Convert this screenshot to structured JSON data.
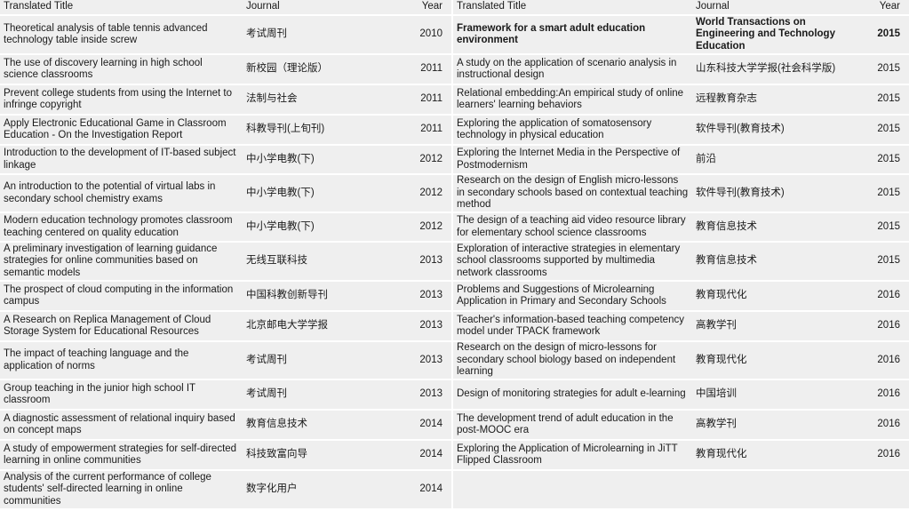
{
  "headers": {
    "title": "Translated Title",
    "journal": "Journal",
    "year": "Year"
  },
  "rows": [
    {
      "l": {
        "title": "Theoretical analysis of table tennis advanced technology table inside screw",
        "journal": "考试周刊",
        "year": "2010"
      },
      "r": {
        "title": "Framework for a smart adult education environment",
        "journal": "World Transactions on Engineering and Technology Education",
        "year": "2015",
        "bold": true
      }
    },
    {
      "l": {
        "title": "The use of discovery learning in high school science classrooms",
        "journal": "新校园（理论版）",
        "year": "2011"
      },
      "r": {
        "title": "A study on the application of scenario analysis in instructional design",
        "journal": "山东科技大学学报(社会科学版)",
        "year": "2015"
      }
    },
    {
      "l": {
        "title": "Prevent college students from using the Internet to infringe copyright",
        "journal": "法制与社会",
        "year": "2011"
      },
      "r": {
        "title": "Relational embedding:An empirical study of online learners' learning behaviors",
        "journal": "远程教育杂志",
        "year": "2015"
      }
    },
    {
      "l": {
        "title": "Apply Electronic Educational Game in Classroom Education - On the Investigation Report",
        "journal": "科教导刊(上旬刊)",
        "year": "2011"
      },
      "r": {
        "title": "Exploring the application of somatosensory technology in physical education",
        "journal": "软件导刊(教育技术)",
        "year": "2015"
      }
    },
    {
      "l": {
        "title": "Introduction to the development of IT-based subject linkage",
        "journal": "中小学电教(下)",
        "year": "2012"
      },
      "r": {
        "title": "Exploring the Internet Media in the Perspective of Postmodernism",
        "journal": "前沿",
        "year": "2015"
      }
    },
    {
      "l": {
        "title": "An introduction to the potential of virtual labs in secondary school chemistry exams",
        "journal": "中小学电教(下)",
        "year": "2012"
      },
      "r": {
        "title": "Research on the design of English micro-lessons in secondary schools based on contextual teaching method",
        "journal": "软件导刊(教育技术)",
        "year": "2015"
      }
    },
    {
      "l": {
        "title": "Modern education technology promotes classroom teaching centered on quality education",
        "journal": "中小学电教(下)",
        "year": "2012"
      },
      "r": {
        "title": "The design of a teaching aid video resource library for elementary school science classrooms",
        "journal": "教育信息技术",
        "year": "2015"
      }
    },
    {
      "l": {
        "title": "A preliminary investigation of learning guidance strategies for online communities based on semantic models",
        "journal": "无线互联科技",
        "year": "2013"
      },
      "r": {
        "title": "Exploration of interactive strategies in elementary school classrooms supported by multimedia network classrooms",
        "journal": "教育信息技术",
        "year": "2015"
      }
    },
    {
      "l": {
        "title": "The prospect of cloud computing in the information campus",
        "journal": "中国科教创新导刊",
        "year": "2013"
      },
      "r": {
        "title": "Problems and Suggestions of Microlearning Application in Primary and Secondary Schools",
        "journal": "教育现代化",
        "year": "2016"
      }
    },
    {
      "l": {
        "title": "A Research on Replica Management of Cloud Storage System for Educational Resources",
        "journal": "北京邮电大学学报",
        "year": "2013"
      },
      "r": {
        "title": "Teacher's information-based teaching competency model under TPACK framework",
        "journal": "高教学刊",
        "year": "2016"
      }
    },
    {
      "l": {
        "title": "The impact of teaching language and the application of norms",
        "journal": "考试周刊",
        "year": "2013"
      },
      "r": {
        "title": "Research on the design of micro-lessons for secondary school biology based on independent learning",
        "journal": "教育现代化",
        "year": "2016"
      }
    },
    {
      "l": {
        "title": "Group teaching in the junior high school IT classroom",
        "journal": "考试周刊",
        "year": "2013"
      },
      "r": {
        "title": "Design of monitoring strategies for adult e-learning",
        "journal": "中国培训",
        "year": "2016"
      }
    },
    {
      "l": {
        "title": "A diagnostic assessment of relational inquiry based on concept maps",
        "journal": "教育信息技术",
        "year": "2014"
      },
      "r": {
        "title": "The development trend of adult education in the post-MOOC era",
        "journal": "高教学刊",
        "year": "2016"
      }
    },
    {
      "l": {
        "title": "A study of empowerment strategies for self-directed learning in online communities",
        "journal": "科技致富向导",
        "year": "2014"
      },
      "r": {
        "title": "Exploring the Application of Microlearning in JiTT Flipped Classroom",
        "journal": "教育现代化",
        "year": "2016"
      }
    },
    {
      "l": {
        "title": "Analysis of the current performance of college students' self-directed learning in online communities",
        "journal": "数字化用户",
        "year": "2014"
      },
      "r": {
        "title": "",
        "journal": "",
        "year": ""
      }
    }
  ]
}
